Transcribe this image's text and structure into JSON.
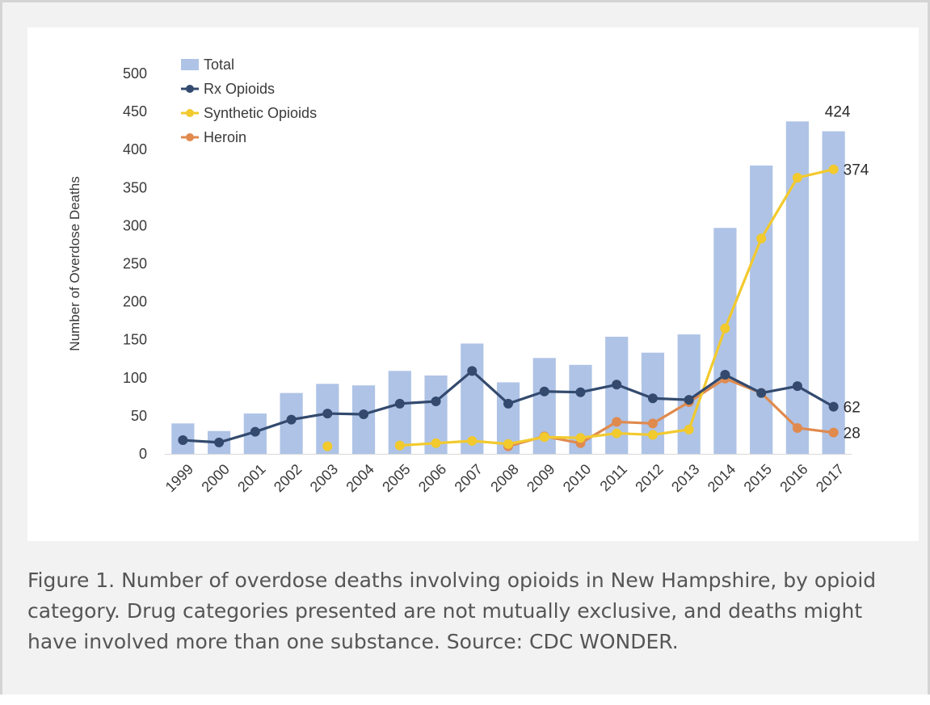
{
  "caption": "Figure 1. Number of overdose deaths involving opioids in New Hampshire, by opioid category. Drug categories presented are not mutually exclusive, and deaths might have involved more than one substance. Source: CDC WONDER.",
  "chart_data": {
    "type": "bar",
    "title": "",
    "xlabel": "",
    "ylabel": "Number of Overdose Deaths",
    "ylim": [
      0,
      500
    ],
    "yticks": [
      0,
      50,
      100,
      150,
      200,
      250,
      300,
      350,
      400,
      450,
      500
    ],
    "categories": [
      "1999",
      "2000",
      "2001",
      "2002",
      "2003",
      "2004",
      "2005",
      "2006",
      "2007",
      "2008",
      "2009",
      "2010",
      "2011",
      "2012",
      "2013",
      "2014",
      "2015",
      "2016",
      "2017"
    ],
    "legend_position": "top-left",
    "grid": false,
    "series": [
      {
        "name": "Total",
        "type": "bar",
        "color": "#aec3e6",
        "values": [
          40,
          30,
          53,
          80,
          92,
          90,
          109,
          103,
          145,
          94,
          126,
          117,
          154,
          133,
          157,
          297,
          379,
          437,
          424
        ]
      },
      {
        "name": "Rx Opioids",
        "type": "line",
        "color": "#334a6e",
        "values": [
          18,
          15,
          29,
          45,
          53,
          52,
          66,
          69,
          109,
          66,
          82,
          81,
          91,
          73,
          71,
          104,
          80,
          89,
          62
        ]
      },
      {
        "name": "Synthetic Opioids",
        "type": "line",
        "color": "#f2ca2e",
        "values": [
          null,
          null,
          null,
          null,
          10,
          null,
          11,
          14,
          17,
          13,
          22,
          21,
          27,
          25,
          32,
          165,
          283,
          363,
          374
        ]
      },
      {
        "name": "Heroin",
        "type": "line",
        "color": "#e08a4e",
        "values": [
          null,
          null,
          null,
          null,
          null,
          null,
          null,
          null,
          null,
          10,
          23,
          14,
          42,
          40,
          68,
          99,
          80,
          34,
          28
        ]
      }
    ],
    "annotations": [
      {
        "text": "424",
        "series": "Total",
        "category": "2017"
      },
      {
        "text": "374",
        "series": "Synthetic Opioids",
        "category": "2017"
      },
      {
        "text": "62",
        "series": "Rx Opioids",
        "category": "2017"
      },
      {
        "text": "28",
        "series": "Heroin",
        "category": "2017"
      }
    ]
  }
}
